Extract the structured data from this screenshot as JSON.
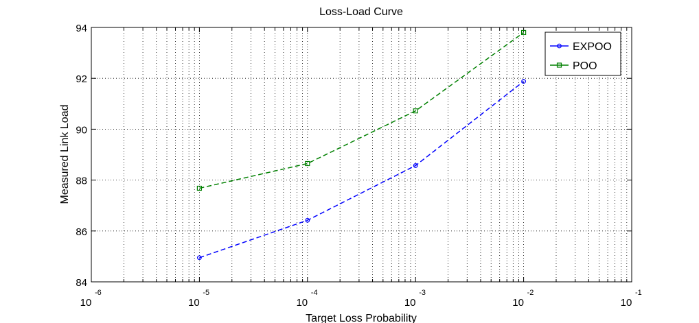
{
  "chart_data": {
    "type": "line",
    "title": "Loss-Load Curve",
    "xlabel": "Target Loss Probability",
    "ylabel": "Measured Link Load",
    "xscale": "log",
    "xlim": [
      1e-06,
      0.1
    ],
    "ylim": [
      84,
      94
    ],
    "xticks": [
      {
        "base": "10",
        "exp": "-6"
      },
      {
        "base": "10",
        "exp": "-5"
      },
      {
        "base": "10",
        "exp": "-4"
      },
      {
        "base": "10",
        "exp": "-3"
      },
      {
        "base": "10",
        "exp": "-2"
      },
      {
        "base": "10",
        "exp": "-1"
      }
    ],
    "yticks": [
      "84",
      "86",
      "88",
      "90",
      "92",
      "94"
    ],
    "grid": true,
    "legend_position": "top-right",
    "x": [
      1e-05,
      0.0001,
      0.001,
      0.01
    ],
    "series": [
      {
        "name": "EXPOO",
        "values": [
          84.95,
          86.42,
          88.57,
          91.88
        ],
        "color": "#0000ff",
        "marker": "circle",
        "line_style": "dashed"
      },
      {
        "name": "POO",
        "values": [
          87.68,
          88.65,
          90.72,
          93.8
        ],
        "color": "#008000",
        "marker": "square",
        "line_style": "dashed"
      }
    ]
  }
}
